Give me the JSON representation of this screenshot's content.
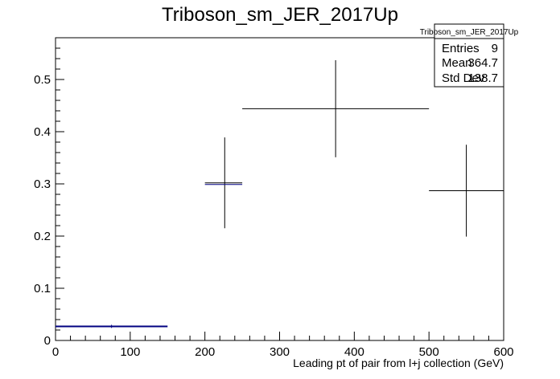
{
  "chart_data": {
    "type": "histogram",
    "title": "Triboson_sm_JER_2017Up",
    "xlabel": "Leading pt of pair from l+j collection (GeV)",
    "ylabel": "",
    "xlim": [
      0,
      600
    ],
    "ylim": [
      0,
      0.58
    ],
    "x_ticks": [
      "0",
      "100",
      "200",
      "300",
      "400",
      "500",
      "600"
    ],
    "y_ticks": [
      "0",
      "0.1",
      "0.2",
      "0.3",
      "0.4",
      "0.5"
    ],
    "bins": [
      {
        "x_low": 0,
        "x_high": 150,
        "center": 75,
        "y": 0.027,
        "err": 0.003
      },
      {
        "x_low": 150,
        "x_high": 200,
        "center": 175,
        "y": 0,
        "err": 0
      },
      {
        "x_low": 200,
        "x_high": 250,
        "center": 212.5,
        "y": 0.0,
        "err": 0
      },
      {
        "x_low": 200,
        "x_high": 250,
        "center": 225,
        "y": 0.302,
        "err": 0.087,
        "draw_center": 212.5
      },
      {
        "x_low": 250,
        "x_high": 500,
        "center": 375,
        "y": 0.444,
        "err": 0.093
      },
      {
        "x_low": 500,
        "x_high": 600,
        "center": 550,
        "y": 0.287,
        "err": 0.088
      }
    ],
    "grid": false,
    "legend": "none",
    "line_color": "#000000",
    "first_bin_color": "#000080"
  },
  "stats": {
    "title": "Triboson_sm_JER_2017Up",
    "rows": [
      {
        "label": "Entries",
        "value": "9"
      },
      {
        "label": "Mean",
        "value": "364.7"
      },
      {
        "label": "Std Dev",
        "value": "138.7"
      }
    ]
  }
}
